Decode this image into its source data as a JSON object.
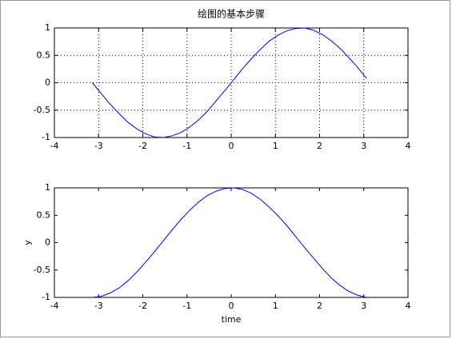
{
  "chart_data": [
    {
      "type": "line",
      "title": "绘图的基本步骤",
      "color": "#0000ff",
      "grid": true,
      "x": [
        -3.14,
        -2.94,
        -2.74,
        -2.54,
        -2.34,
        -2.14,
        -1.94,
        -1.74,
        -1.54,
        -1.34,
        -1.14,
        -0.94,
        -0.74,
        -0.54,
        -0.34,
        -0.14,
        0.06,
        0.26,
        0.46,
        0.66,
        0.86,
        1.06,
        1.26,
        1.46,
        1.66,
        1.86,
        2.06,
        2.26,
        2.46,
        2.66,
        2.86,
        3.06
      ],
      "values": [
        0,
        -0.2,
        -0.39,
        -0.56,
        -0.72,
        -0.84,
        -0.93,
        -0.99,
        -1,
        -0.97,
        -0.91,
        -0.81,
        -0.68,
        -0.52,
        -0.33,
        -0.14,
        0.06,
        0.26,
        0.44,
        0.61,
        0.76,
        0.87,
        0.95,
        0.99,
        1,
        0.96,
        0.88,
        0.77,
        0.63,
        0.46,
        0.28,
        0.08
      ],
      "xlim": [
        -4,
        4
      ],
      "xticks": [
        -4,
        -3,
        -2,
        -1,
        0,
        1,
        2,
        3,
        4
      ],
      "ylim": [
        -1,
        1
      ],
      "yticks": [
        -1,
        -0.5,
        0,
        0.5,
        1
      ]
    },
    {
      "type": "line",
      "xlabel": "time",
      "ylabel": "y",
      "color": "#0000ff",
      "grid": false,
      "x": [
        -3.14,
        -2.94,
        -2.74,
        -2.54,
        -2.34,
        -2.14,
        -1.94,
        -1.74,
        -1.54,
        -1.34,
        -1.14,
        -0.94,
        -0.74,
        -0.54,
        -0.34,
        -0.14,
        0.06,
        0.26,
        0.46,
        0.66,
        0.86,
        1.06,
        1.26,
        1.46,
        1.66,
        1.86,
        2.06,
        2.26,
        2.46,
        2.66,
        2.86,
        3.06
      ],
      "values": [
        -1,
        -0.98,
        -0.92,
        -0.83,
        -0.7,
        -0.54,
        -0.36,
        -0.17,
        0.03,
        0.23,
        0.42,
        0.59,
        0.74,
        0.86,
        0.94,
        0.99,
        1,
        0.97,
        0.9,
        0.79,
        0.65,
        0.49,
        0.31,
        0.11,
        -0.09,
        -0.28,
        -0.47,
        -0.64,
        -0.78,
        -0.89,
        -0.96,
        -1
      ],
      "xlim": [
        -4,
        4
      ],
      "xticks": [
        -4,
        -3,
        -2,
        -1,
        0,
        1,
        2,
        3,
        4
      ],
      "ylim": [
        -1,
        1
      ],
      "yticks": [
        -1,
        -0.5,
        0,
        0.5,
        1
      ]
    }
  ]
}
